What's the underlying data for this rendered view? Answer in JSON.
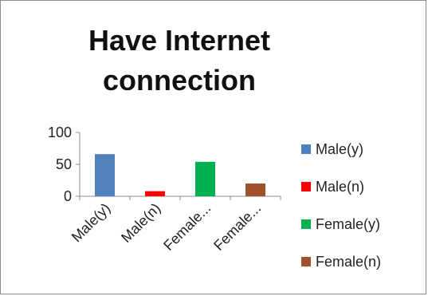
{
  "chart_data": {
    "type": "bar",
    "title_lines": [
      "Have Internet",
      "connection"
    ],
    "categories": [
      "Male(y)",
      "Male(n)",
      "Female(y)",
      "Female(n)"
    ],
    "category_tick_labels": [
      "Male(y)",
      "Male(n)",
      "Female...",
      "Female..."
    ],
    "values": [
      66,
      8,
      54,
      20
    ],
    "colors": [
      "#4f81bd",
      "#ff0000",
      "#00b050",
      "#a0522d"
    ],
    "ylim": [
      0,
      100
    ],
    "yticks": [
      0,
      50,
      100
    ],
    "xlabel": "",
    "ylabel": "",
    "grid": false,
    "legend_position": "right",
    "legend": [
      "Male(y)",
      "Male(n)",
      "Female(y)",
      "Female(n)"
    ]
  }
}
